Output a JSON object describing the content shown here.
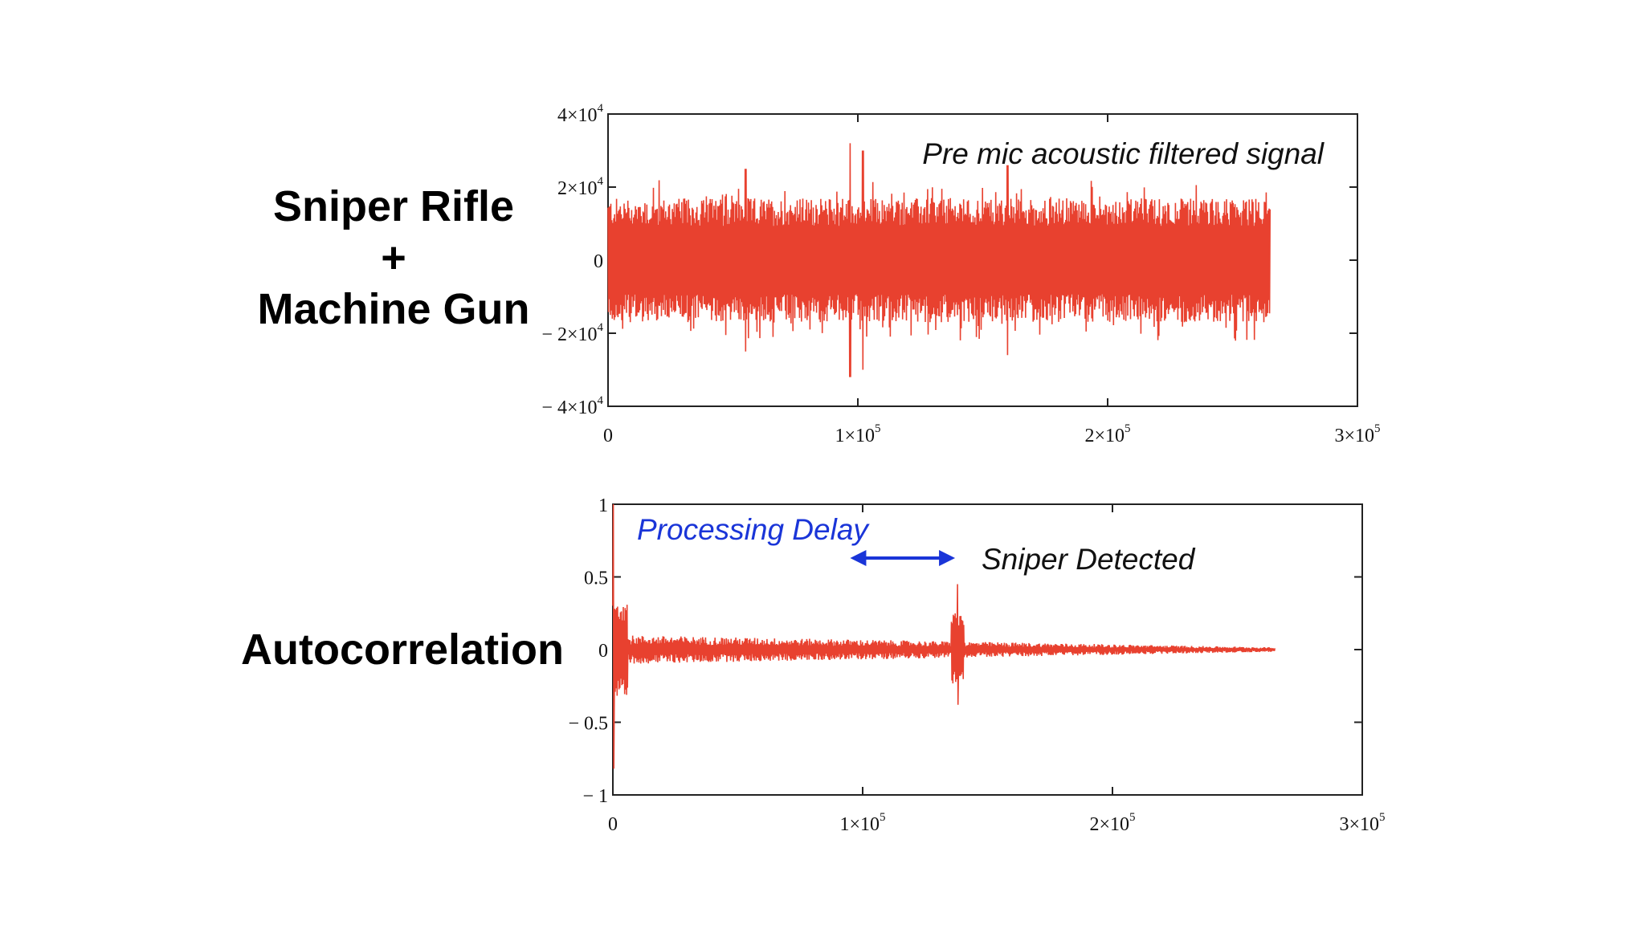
{
  "labels": {
    "top_line1": "Sniper Rifle",
    "top_line2": "+",
    "top_line3": "Machine Gun",
    "bottom": "Autocorrelation"
  },
  "chart_data": [
    {
      "type": "line",
      "title": "",
      "annotation": "Pre mic acoustic filtered signal",
      "xlim": [
        0,
        300000
      ],
      "ylim": [
        -40000,
        40000
      ],
      "x_ticks": [
        {
          "value": 0,
          "label": "0"
        },
        {
          "value": 100000,
          "label": "1×10",
          "exp": "5"
        },
        {
          "value": 200000,
          "label": "2×10",
          "exp": "5"
        },
        {
          "value": 300000,
          "label": "3×10",
          "exp": "5"
        }
      ],
      "y_ticks": [
        {
          "value": 40000,
          "label": "4×10",
          "exp": "4"
        },
        {
          "value": 20000,
          "label": "2×10",
          "exp": "4"
        },
        {
          "value": 0,
          "label": "0"
        },
        {
          "value": -20000,
          "label": "− 2×10",
          "exp": "4"
        },
        {
          "value": -40000,
          "label": "− 4×10",
          "exp": "4"
        }
      ],
      "signal": {
        "x_end": 265000,
        "base_amplitude": 17000,
        "peaks": [
          {
            "x": 97000,
            "max": 29000,
            "min": -32000
          },
          {
            "x": 102000,
            "max": 30000,
            "min": -30000
          },
          {
            "x": 55000,
            "max": 25000,
            "min": -25000
          },
          {
            "x": 160000,
            "max": 26000,
            "min": -26000
          }
        ]
      },
      "colors": {
        "line": "#e8412f",
        "axis": "#222222"
      }
    },
    {
      "type": "line",
      "title": "",
      "annotations": [
        {
          "text": "Processing Delay",
          "color": "#1a35d8"
        },
        {
          "text": "Sniper Detected",
          "color": "#111111"
        }
      ],
      "xlim": [
        0,
        300000
      ],
      "ylim": [
        -1,
        1
      ],
      "x_ticks": [
        {
          "value": 0,
          "label": "0"
        },
        {
          "value": 100000,
          "label": "1×10",
          "exp": "5"
        },
        {
          "value": 200000,
          "label": "2×10",
          "exp": "5"
        },
        {
          "value": 300000,
          "label": "3×10",
          "exp": "5"
        }
      ],
      "y_ticks": [
        {
          "value": 1,
          "label": "1"
        },
        {
          "value": 0.5,
          "label": "0.5"
        },
        {
          "value": 0,
          "label": "0"
        },
        {
          "value": -0.5,
          "label": "− 0.5"
        },
        {
          "value": -1,
          "label": "− 1"
        }
      ],
      "signal": {
        "x_end": 265000,
        "initial_spike": {
          "x": 500,
          "max": 1.0,
          "min": -0.82
        },
        "detection_peak": {
          "x": 138000,
          "max": 0.45,
          "min": -0.38
        },
        "noise_amplitude": 0.1
      },
      "processing_delay_range": [
        95000,
        137000
      ],
      "colors": {
        "line": "#e8412f",
        "axis": "#222222",
        "arrow": "#1a35d8"
      }
    }
  ]
}
